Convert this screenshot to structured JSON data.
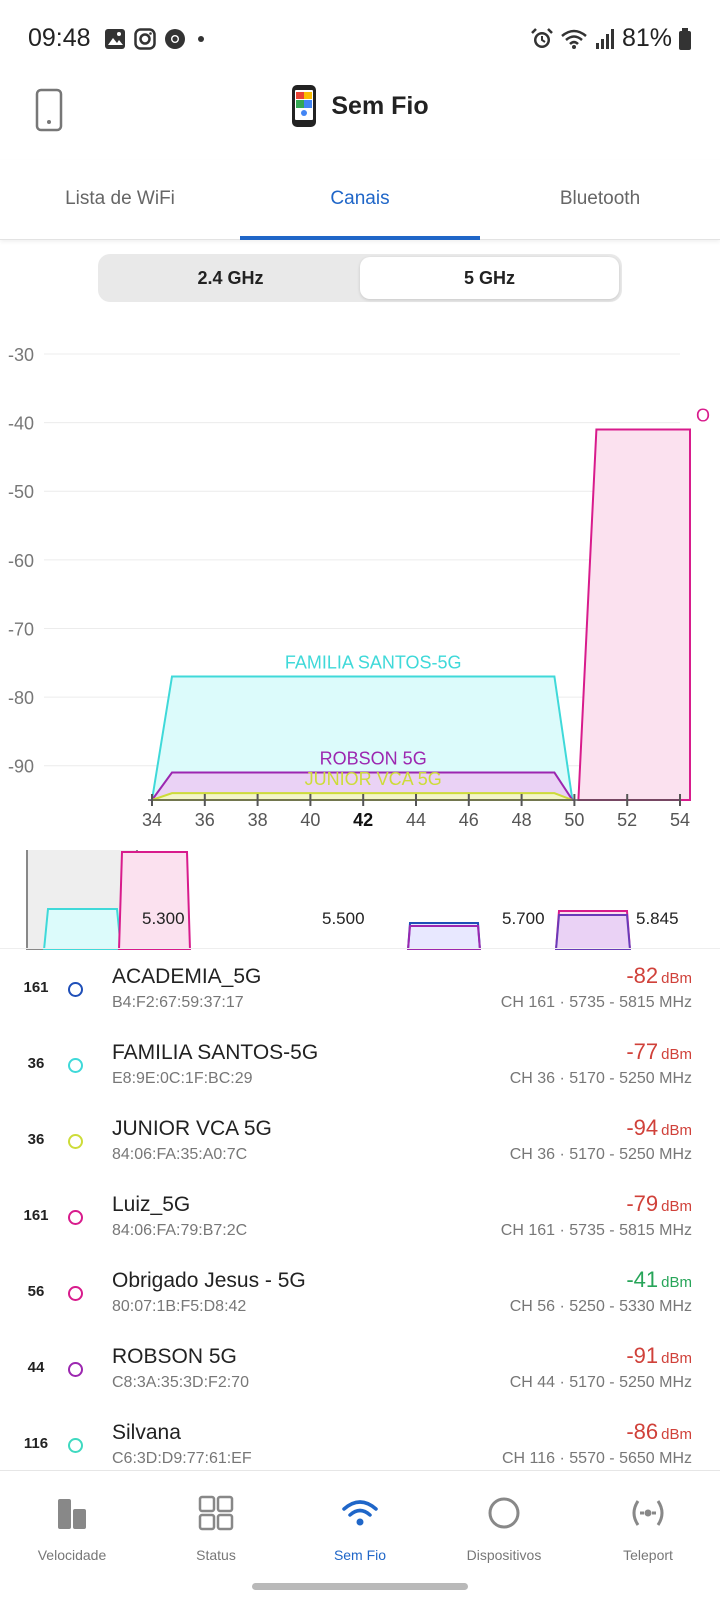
{
  "status_bar": {
    "time": "09:48",
    "battery": "81%"
  },
  "header": {
    "title": "Sem Fio"
  },
  "tabs": [
    {
      "label": "Lista de WiFi",
      "active": false
    },
    {
      "label": "Canais",
      "active": true
    },
    {
      "label": "Bluetooth",
      "active": false
    }
  ],
  "band_toggle": {
    "options": [
      "2.4 GHz",
      "5 GHz"
    ],
    "selected": "5 GHz"
  },
  "chart_data": {
    "type": "area",
    "y_ticks": [
      "-30",
      "-40",
      "-50",
      "-60",
      "-70",
      "-80",
      "-90"
    ],
    "ylim": [
      -95,
      -30
    ],
    "x_ticks": [
      "34",
      "36",
      "38",
      "40",
      "42",
      "44",
      "46",
      "48",
      "50",
      "52",
      "54"
    ],
    "x_highlight": "42",
    "xlim": [
      34,
      54
    ],
    "series": [
      {
        "name": "FAMILIA SANTOS-5G",
        "start": 34,
        "end": 50,
        "value": -77,
        "color": "#3fd9d9",
        "fill": "#dcfbfb",
        "show_label": true
      },
      {
        "name": "ROBSON 5G",
        "start": 34,
        "end": 50,
        "value": -91,
        "color": "#9c27b0",
        "fill": "#ead2f5",
        "show_label": true
      },
      {
        "name": "JUNIOR VCA 5G",
        "start": 34,
        "end": 50,
        "value": -94,
        "color": "#cddc39",
        "fill": "#f3f6c9",
        "show_label": true
      },
      {
        "name": "Obrigado Jesus - 5G",
        "start": 50,
        "end": 54,
        "value": -41,
        "color": "#d81b8c",
        "fill": "#fbe1ef",
        "show_label": false
      }
    ],
    "cutoff_label": "O"
  },
  "overview": {
    "labels": [
      "5.300",
      "5.500",
      "5.700",
      "5.845"
    ]
  },
  "networks": [
    {
      "channel": "161",
      "name": "ACADEMIA_5G",
      "mac": "B4:F2:67:59:37:17",
      "dbm": "-82",
      "unit": "dBm",
      "freq": "CH 161 · 5735 - 5815 MHz",
      "color": "#1f4fb8",
      "good": false
    },
    {
      "channel": "36",
      "name": "FAMILIA SANTOS-5G",
      "mac": "E8:9E:0C:1F:BC:29",
      "dbm": "-77",
      "unit": "dBm",
      "freq": "CH 36 · 5170 - 5250 MHz",
      "color": "#3fd9d9",
      "good": false
    },
    {
      "channel": "36",
      "name": "JUNIOR VCA 5G",
      "mac": "84:06:FA:35:A0:7C",
      "dbm": "-94",
      "unit": "dBm",
      "freq": "CH 36 · 5170 - 5250 MHz",
      "color": "#cddc39",
      "good": false
    },
    {
      "channel": "161",
      "name": "Luiz_5G",
      "mac": "84:06:FA:79:B7:2C",
      "dbm": "-79",
      "unit": "dBm",
      "freq": "CH 161 · 5735 - 5815 MHz",
      "color": "#d81b8c",
      "good": false
    },
    {
      "channel": "56",
      "name": "Obrigado Jesus - 5G",
      "mac": "80:07:1B:F5:D8:42",
      "dbm": "-41",
      "unit": "dBm",
      "freq": "CH 56 · 5250 - 5330 MHz",
      "color": "#d81b8c",
      "good": true
    },
    {
      "channel": "44",
      "name": "ROBSON 5G",
      "mac": "C8:3A:35:3D:F2:70",
      "dbm": "-91",
      "unit": "dBm",
      "freq": "CH 44 · 5170 - 5250 MHz",
      "color": "#9c27b0",
      "good": false
    },
    {
      "channel": "116",
      "name": "Silvana",
      "mac": "C6:3D:D9:77:61:EF",
      "dbm": "-86",
      "unit": "dBm",
      "freq": "CH 116 · 5570 - 5650 MHz",
      "color": "#3fd9c0",
      "good": false
    }
  ],
  "bottom_nav": [
    {
      "label": "Velocidade",
      "icon": "speed-bars-icon",
      "active": false
    },
    {
      "label": "Status",
      "icon": "grid-icon",
      "active": false
    },
    {
      "label": "Sem Fio",
      "icon": "wifi-icon",
      "active": true
    },
    {
      "label": "Dispositivos",
      "icon": "circle-icon",
      "active": false
    },
    {
      "label": "Teleport",
      "icon": "teleport-icon",
      "active": false
    }
  ]
}
